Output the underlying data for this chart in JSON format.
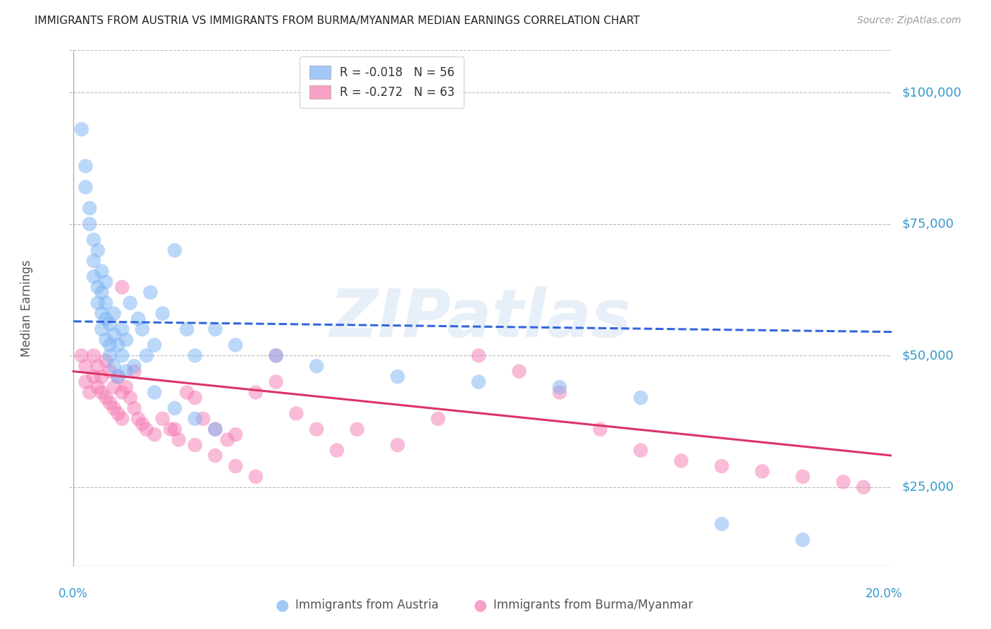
{
  "title": "IMMIGRANTS FROM AUSTRIA VS IMMIGRANTS FROM BURMA/MYANMAR MEDIAN EARNINGS CORRELATION CHART",
  "source": "Source: ZipAtlas.com",
  "ylabel": "Median Earnings",
  "ytick_labels": [
    "$25,000",
    "$50,000",
    "$75,000",
    "$100,000"
  ],
  "ytick_values": [
    25000,
    50000,
    75000,
    100000
  ],
  "ymin": 10000,
  "ymax": 108000,
  "xmin": -0.001,
  "xmax": 0.202,
  "austria_color": "#7ab3f5",
  "burma_color": "#f57ab3",
  "austria_line_color": "#3366dd",
  "burma_line_color": "#dd3366",
  "austria_line_x": [
    0.0,
    0.202
  ],
  "austria_line_y": [
    56500,
    54500
  ],
  "burma_line_x": [
    0.0,
    0.202
  ],
  "burma_line_y": [
    47000,
    31000
  ],
  "watermark": "ZIPatlas",
  "background_color": "#ffffff",
  "grid_color": "#bbbbbb",
  "title_color": "#222222",
  "axis_label_color": "#3399cc",
  "austria_scatter_x": [
    0.002,
    0.003,
    0.003,
    0.004,
    0.004,
    0.005,
    0.005,
    0.005,
    0.006,
    0.006,
    0.006,
    0.007,
    0.007,
    0.007,
    0.007,
    0.008,
    0.008,
    0.008,
    0.008,
    0.009,
    0.009,
    0.009,
    0.01,
    0.01,
    0.01,
    0.011,
    0.011,
    0.012,
    0.012,
    0.013,
    0.013,
    0.014,
    0.015,
    0.016,
    0.017,
    0.018,
    0.019,
    0.02,
    0.022,
    0.025,
    0.028,
    0.03,
    0.035,
    0.04,
    0.05,
    0.06,
    0.08,
    0.1,
    0.12,
    0.14,
    0.16,
    0.18,
    0.02,
    0.025,
    0.03,
    0.035
  ],
  "austria_scatter_y": [
    93000,
    86000,
    82000,
    78000,
    75000,
    72000,
    68000,
    65000,
    63000,
    60000,
    70000,
    62000,
    58000,
    66000,
    55000,
    57000,
    53000,
    60000,
    64000,
    56000,
    52000,
    50000,
    54000,
    48000,
    58000,
    52000,
    46000,
    50000,
    55000,
    47000,
    53000,
    60000,
    48000,
    57000,
    55000,
    50000,
    62000,
    52000,
    58000,
    70000,
    55000,
    50000,
    55000,
    52000,
    50000,
    48000,
    46000,
    45000,
    44000,
    42000,
    18000,
    15000,
    43000,
    40000,
    38000,
    36000
  ],
  "burma_scatter_x": [
    0.002,
    0.003,
    0.003,
    0.004,
    0.005,
    0.005,
    0.006,
    0.006,
    0.007,
    0.007,
    0.008,
    0.008,
    0.009,
    0.009,
    0.01,
    0.01,
    0.011,
    0.011,
    0.012,
    0.012,
    0.013,
    0.014,
    0.015,
    0.016,
    0.017,
    0.018,
    0.02,
    0.022,
    0.024,
    0.026,
    0.028,
    0.03,
    0.032,
    0.035,
    0.038,
    0.04,
    0.045,
    0.05,
    0.055,
    0.06,
    0.065,
    0.07,
    0.08,
    0.09,
    0.1,
    0.11,
    0.12,
    0.13,
    0.14,
    0.15,
    0.16,
    0.17,
    0.18,
    0.19,
    0.195,
    0.03,
    0.025,
    0.035,
    0.04,
    0.045,
    0.05,
    0.012,
    0.015
  ],
  "burma_scatter_y": [
    50000,
    48000,
    45000,
    43000,
    50000,
    46000,
    48000,
    44000,
    46000,
    43000,
    49000,
    42000,
    47000,
    41000,
    44000,
    40000,
    46000,
    39000,
    43000,
    38000,
    44000,
    42000,
    40000,
    38000,
    37000,
    36000,
    35000,
    38000,
    36000,
    34000,
    43000,
    42000,
    38000,
    36000,
    34000,
    35000,
    43000,
    50000,
    39000,
    36000,
    32000,
    36000,
    33000,
    38000,
    50000,
    47000,
    43000,
    36000,
    32000,
    30000,
    29000,
    28000,
    27000,
    26000,
    25000,
    33000,
    36000,
    31000,
    29000,
    27000,
    45000,
    63000,
    47000
  ]
}
